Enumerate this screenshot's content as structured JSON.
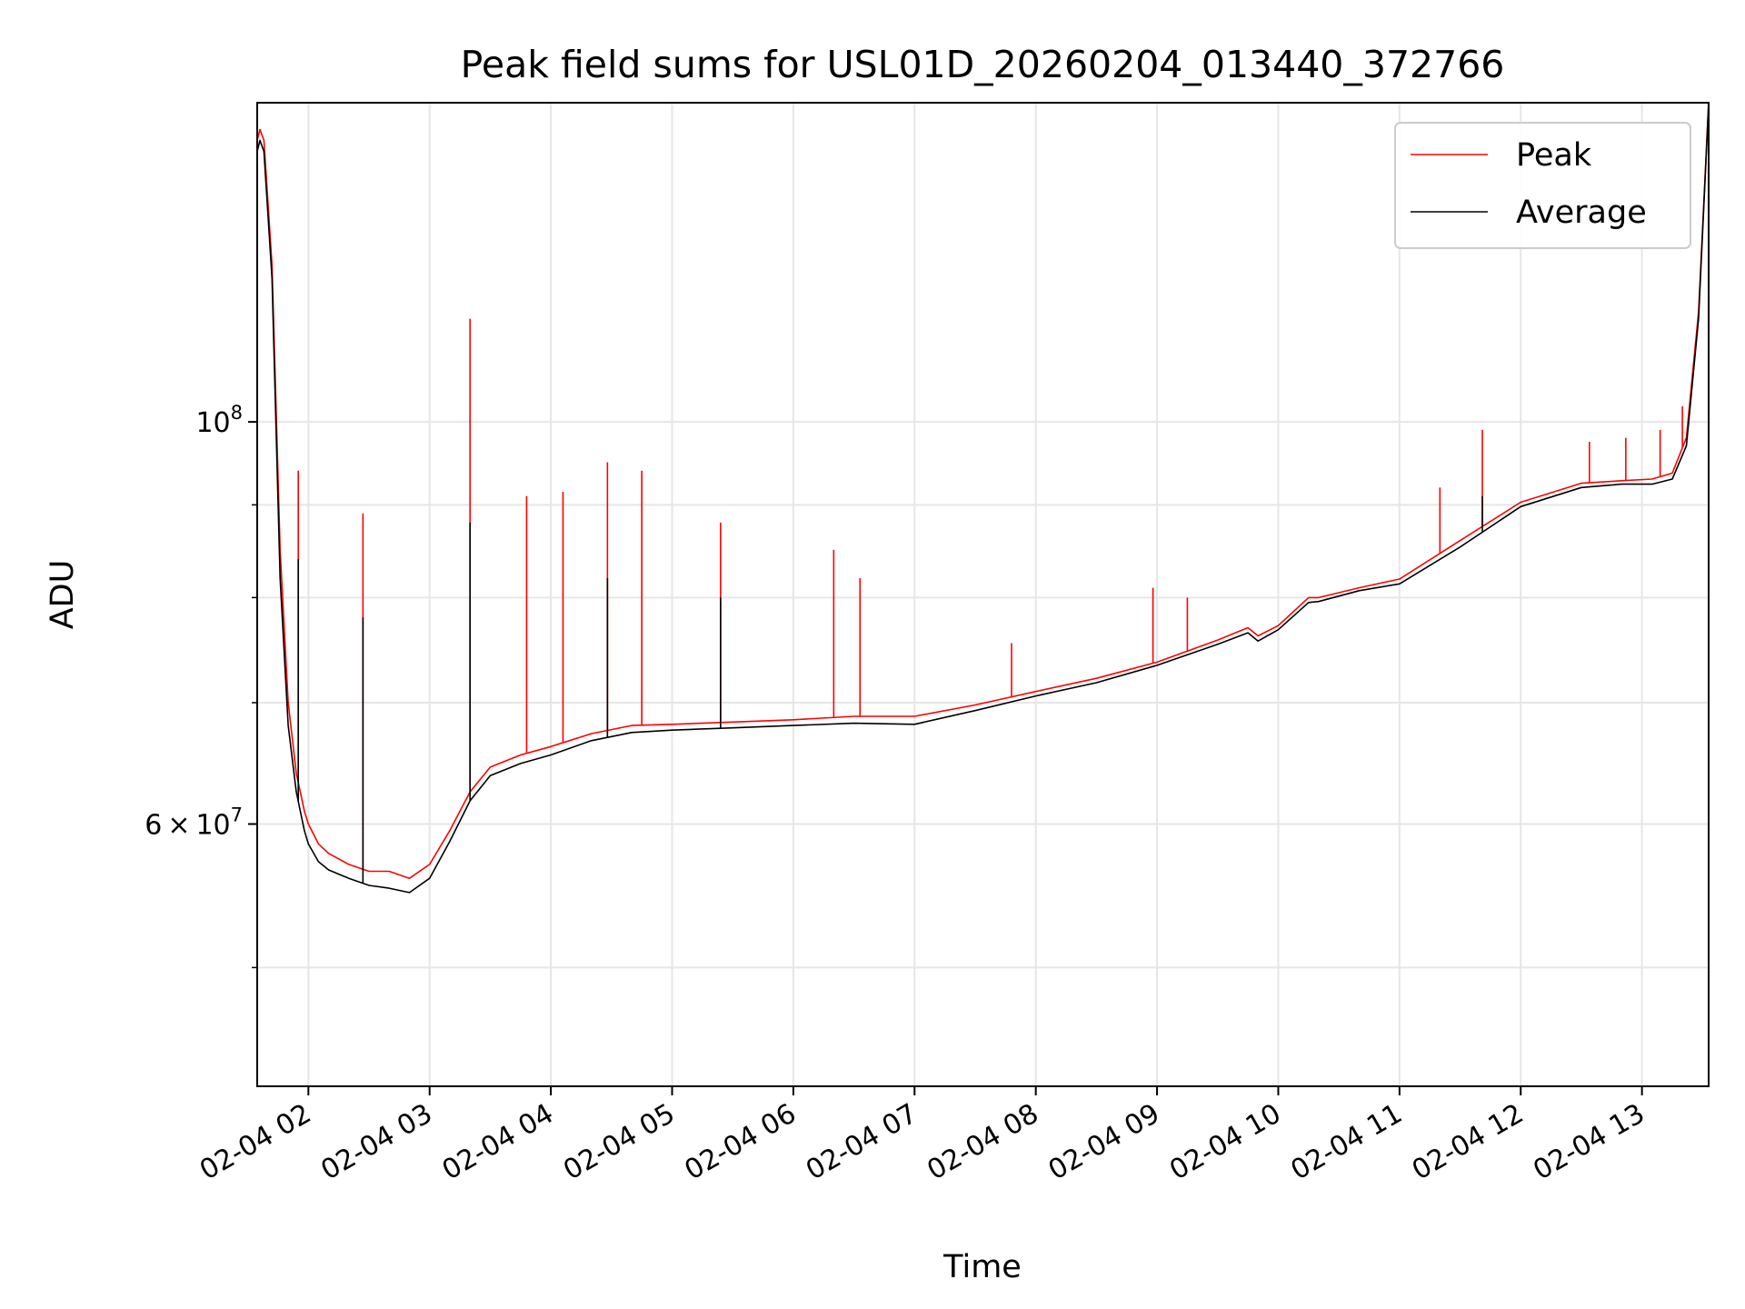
{
  "chart_data": {
    "type": "line",
    "title": "Peak field sums for USL01D_20260204_013440_372766",
    "xlabel": "Time",
    "ylabel": "ADU",
    "yscale": "log",
    "xlim": [
      "2026-02-04 01:34:40",
      "2026-02-04 13:33:00"
    ],
    "ylim": [
      43000000,
      150000000
    ],
    "grid": true,
    "legend_placement": "top-right",
    "x_ticks": [
      {
        "value": "2026-02-04 02:00",
        "label": "02-04 02"
      },
      {
        "value": "2026-02-04 03:00",
        "label": "02-04 03"
      },
      {
        "value": "2026-02-04 04:00",
        "label": "02-04 04"
      },
      {
        "value": "2026-02-04 05:00",
        "label": "02-04 05"
      },
      {
        "value": "2026-02-04 06:00",
        "label": "02-04 06"
      },
      {
        "value": "2026-02-04 07:00",
        "label": "02-04 07"
      },
      {
        "value": "2026-02-04 08:00",
        "label": "02-04 08"
      },
      {
        "value": "2026-02-04 09:00",
        "label": "02-04 09"
      },
      {
        "value": "2026-02-04 10:00",
        "label": "02-04 10"
      },
      {
        "value": "2026-02-04 11:00",
        "label": "02-04 11"
      },
      {
        "value": "2026-02-04 12:00",
        "label": "02-04 12"
      },
      {
        "value": "2026-02-04 13:00",
        "label": "02-04 13"
      }
    ],
    "y_major_ticks": [
      {
        "value": 100000000,
        "base": "10",
        "exp": "8"
      },
      {
        "value": 60000000,
        "mant": "6",
        "times": "×",
        "base": "10",
        "exp": "7"
      }
    ],
    "y_minor_ticks": [
      50000000,
      70000000,
      80000000,
      90000000
    ],
    "series": [
      {
        "name": "Peak",
        "color": "#ff0000",
        "x": [
          "2026-02-04 01:34:40",
          "2026-02-04 01:36",
          "2026-02-04 01:38",
          "2026-02-04 01:42",
          "2026-02-04 01:46",
          "2026-02-04 01:50",
          "2026-02-04 01:54",
          "2026-02-04 01:58",
          "2026-02-04 02:00",
          "2026-02-04 02:05",
          "2026-02-04 02:10",
          "2026-02-04 02:20",
          "2026-02-04 02:30",
          "2026-02-04 02:40",
          "2026-02-04 02:50",
          "2026-02-04 03:00",
          "2026-02-04 03:10",
          "2026-02-04 03:20",
          "2026-02-04 03:30",
          "2026-02-04 03:45",
          "2026-02-04 04:00",
          "2026-02-04 04:20",
          "2026-02-04 04:40",
          "2026-02-04 05:00",
          "2026-02-04 05:30",
          "2026-02-04 06:00",
          "2026-02-04 06:30",
          "2026-02-04 07:00",
          "2026-02-04 07:30",
          "2026-02-04 08:00",
          "2026-02-04 08:30",
          "2026-02-04 09:00",
          "2026-02-04 09:30",
          "2026-02-04 09:45",
          "2026-02-04 09:50",
          "2026-02-04 10:00",
          "2026-02-04 10:15",
          "2026-02-04 10:20",
          "2026-02-04 10:40",
          "2026-02-04 11:00",
          "2026-02-04 11:30",
          "2026-02-04 12:00",
          "2026-02-04 12:30",
          "2026-02-04 12:50",
          "2026-02-04 13:05",
          "2026-02-04 13:15",
          "2026-02-04 13:22",
          "2026-02-04 13:28",
          "2026-02-04 13:33"
        ],
        "y": [
          143000000,
          145000000,
          143000000,
          122000000,
          85000000,
          70000000,
          64000000,
          61000000,
          60000000,
          58500000,
          57800000,
          57000000,
          56500000,
          56500000,
          56000000,
          57000000,
          59500000,
          62500000,
          64500000,
          65500000,
          66200000,
          67300000,
          68000000,
          68100000,
          68300000,
          68500000,
          68800000,
          68800000,
          69800000,
          71000000,
          72200000,
          73700000,
          75800000,
          77000000,
          76200000,
          77200000,
          80000000,
          80000000,
          81000000,
          81900000,
          86000000,
          90300000,
          92500000,
          92800000,
          93000000,
          93700000,
          98000000,
          115000000,
          150000000
        ]
      },
      {
        "name": "Average",
        "color": "#000000",
        "x": [
          "2026-02-04 01:34:40",
          "2026-02-04 01:36",
          "2026-02-04 01:38",
          "2026-02-04 01:42",
          "2026-02-04 01:46",
          "2026-02-04 01:50",
          "2026-02-04 01:54",
          "2026-02-04 01:58",
          "2026-02-04 02:00",
          "2026-02-04 02:05",
          "2026-02-04 02:10",
          "2026-02-04 02:20",
          "2026-02-04 02:30",
          "2026-02-04 02:40",
          "2026-02-04 02:50",
          "2026-02-04 03:00",
          "2026-02-04 03:10",
          "2026-02-04 03:20",
          "2026-02-04 03:30",
          "2026-02-04 03:45",
          "2026-02-04 04:00",
          "2026-02-04 04:20",
          "2026-02-04 04:40",
          "2026-02-04 05:00",
          "2026-02-04 05:30",
          "2026-02-04 06:00",
          "2026-02-04 06:30",
          "2026-02-04 07:00",
          "2026-02-04 07:30",
          "2026-02-04 08:00",
          "2026-02-04 08:30",
          "2026-02-04 09:00",
          "2026-02-04 09:30",
          "2026-02-04 09:45",
          "2026-02-04 09:50",
          "2026-02-04 10:00",
          "2026-02-04 10:15",
          "2026-02-04 10:20",
          "2026-02-04 10:40",
          "2026-02-04 11:00",
          "2026-02-04 11:30",
          "2026-02-04 12:00",
          "2026-02-04 12:30",
          "2026-02-04 12:50",
          "2026-02-04 13:05",
          "2026-02-04 13:15",
          "2026-02-04 13:22",
          "2026-02-04 13:28",
          "2026-02-04 13:33"
        ],
        "y": [
          141000000,
          143000000,
          141000000,
          120000000,
          82000000,
          68000000,
          62500000,
          59500000,
          58500000,
          57200000,
          56600000,
          56000000,
          55500000,
          55300000,
          55000000,
          56000000,
          58700000,
          61800000,
          63800000,
          64800000,
          65500000,
          66700000,
          67400000,
          67600000,
          67800000,
          68000000,
          68200000,
          68100000,
          69300000,
          70600000,
          71800000,
          73400000,
          75400000,
          76500000,
          75700000,
          76800000,
          79500000,
          79600000,
          80700000,
          81400000,
          85300000,
          89800000,
          92000000,
          92400000,
          92400000,
          93000000,
          97000000,
          114000000,
          150000000
        ]
      }
    ],
    "spikes": [
      {
        "series": "Peak",
        "x": "2026-02-04 01:55",
        "y": 94000000
      },
      {
        "series": "Average",
        "x": "2026-02-04 01:55",
        "y": 84000000
      },
      {
        "series": "Peak",
        "x": "2026-02-04 02:27",
        "y": 89000000
      },
      {
        "series": "Average",
        "x": "2026-02-04 02:27",
        "y": 78000000
      },
      {
        "series": "Peak",
        "x": "2026-02-04 03:20",
        "y": 114000000
      },
      {
        "series": "Average",
        "x": "2026-02-04 03:20",
        "y": 88000000
      },
      {
        "series": "Peak",
        "x": "2026-02-04 03:48",
        "y": 91000000
      },
      {
        "series": "Peak",
        "x": "2026-02-04 04:06",
        "y": 91500000
      },
      {
        "series": "Peak",
        "x": "2026-02-04 04:28",
        "y": 95000000
      },
      {
        "series": "Average",
        "x": "2026-02-04 04:28",
        "y": 82000000
      },
      {
        "series": "Peak",
        "x": "2026-02-04 04:45",
        "y": 94000000
      },
      {
        "series": "Peak",
        "x": "2026-02-04 05:24",
        "y": 88000000
      },
      {
        "series": "Average",
        "x": "2026-02-04 05:24",
        "y": 80000000
      },
      {
        "series": "Peak",
        "x": "2026-02-04 06:20",
        "y": 85000000
      },
      {
        "series": "Peak",
        "x": "2026-02-04 06:33",
        "y": 82000000
      },
      {
        "series": "Peak",
        "x": "2026-02-04 07:48",
        "y": 75500000
      },
      {
        "series": "Peak",
        "x": "2026-02-04 08:58",
        "y": 81000000
      },
      {
        "series": "Peak",
        "x": "2026-02-04 09:15",
        "y": 80000000
      },
      {
        "series": "Peak",
        "x": "2026-02-04 11:20",
        "y": 92000000
      },
      {
        "series": "Peak",
        "x": "2026-02-04 11:41",
        "y": 99000000
      },
      {
        "series": "Average",
        "x": "2026-02-04 11:41",
        "y": 91000000
      },
      {
        "series": "Peak",
        "x": "2026-02-04 12:34",
        "y": 97500000
      },
      {
        "series": "Peak",
        "x": "2026-02-04 12:52",
        "y": 98000000
      },
      {
        "series": "Peak",
        "x": "2026-02-04 13:09",
        "y": 99000000
      },
      {
        "series": "Peak",
        "x": "2026-02-04 13:20",
        "y": 102000000
      }
    ]
  }
}
